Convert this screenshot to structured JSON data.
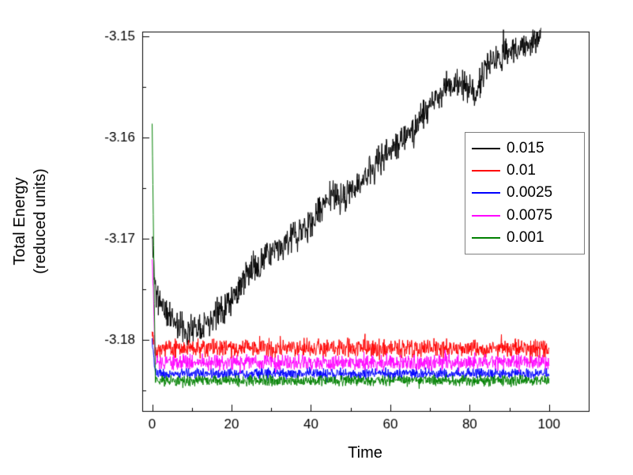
{
  "chart_data": {
    "type": "line",
    "title": "",
    "xlabel": "Time",
    "ylabel": "Total Energy (reduced units)",
    "ylabel_lines": [
      "Total Energy",
      "(reduced units)"
    ],
    "xlim": [
      -2.5,
      110
    ],
    "ylim": [
      -3.187,
      -3.1495
    ],
    "xticks": [
      0,
      20,
      40,
      60,
      80,
      100
    ],
    "xticks_minor": [
      10,
      30,
      50,
      70,
      90
    ],
    "yticks": [
      -3.15,
      -3.16,
      -3.17,
      -3.18
    ],
    "yticks_minor": [
      -3.155,
      -3.165,
      -3.175,
      -3.185
    ],
    "grid": false,
    "legend_position": "upper right",
    "frame_color": "#000000",
    "series": [
      {
        "label": "0.015",
        "color": "#000000",
        "noise": 0.001,
        "seed": 11,
        "points": 950,
        "t_start": 0,
        "t_end": 98,
        "trend": [
          [
            0,
            -3.17
          ],
          [
            1,
            -3.1755
          ],
          [
            3,
            -3.177
          ],
          [
            8,
            -3.179
          ],
          [
            12,
            -3.1785
          ],
          [
            16,
            -3.1775
          ],
          [
            20,
            -3.176
          ],
          [
            25,
            -3.173
          ],
          [
            30,
            -3.1715
          ],
          [
            35,
            -3.17
          ],
          [
            40,
            -3.1685
          ],
          [
            45,
            -3.1655
          ],
          [
            48,
            -3.1662
          ],
          [
            52,
            -3.1645
          ],
          [
            56,
            -3.163
          ],
          [
            60,
            -3.161
          ],
          [
            64,
            -3.16
          ],
          [
            68,
            -3.158
          ],
          [
            72,
            -3.156
          ],
          [
            75,
            -3.1545
          ],
          [
            78,
            -3.1547
          ],
          [
            81,
            -3.156
          ],
          [
            84,
            -3.153
          ],
          [
            88,
            -3.152
          ],
          [
            92,
            -3.151
          ],
          [
            95,
            -3.1505
          ],
          [
            98,
            -3.15
          ]
        ]
      },
      {
        "label": "0.01",
        "color": "#ff0000",
        "noise": 0.0006,
        "seed": 22,
        "points": 1100,
        "t_start": 0,
        "t_end": 100,
        "trend": [
          [
            0,
            -3.179
          ],
          [
            1,
            -3.1808
          ],
          [
            100,
            -3.1808
          ]
        ]
      },
      {
        "label": "0.0025",
        "color": "#0000ff",
        "noise": 0.00035,
        "seed": 33,
        "points": 1100,
        "t_start": 0,
        "t_end": 100,
        "trend": [
          [
            0,
            -3.18
          ],
          [
            0.8,
            -3.1833
          ],
          [
            100,
            -3.1833
          ]
        ]
      },
      {
        "label": "0.0075",
        "color": "#ff00ff",
        "noise": 0.0005,
        "seed": 44,
        "points": 1100,
        "t_start": 0,
        "t_end": 100,
        "trend": [
          [
            0,
            -3.172
          ],
          [
            0.8,
            -3.1822
          ],
          [
            100,
            -3.1822
          ]
        ]
      },
      {
        "label": "0.001",
        "color": "#008000",
        "noise": 0.00035,
        "seed": 55,
        "points": 1100,
        "t_start": 0,
        "t_end": 100,
        "trend": [
          [
            0,
            -3.1588
          ],
          [
            0.8,
            -3.184
          ],
          [
            100,
            -3.184
          ]
        ]
      }
    ]
  }
}
